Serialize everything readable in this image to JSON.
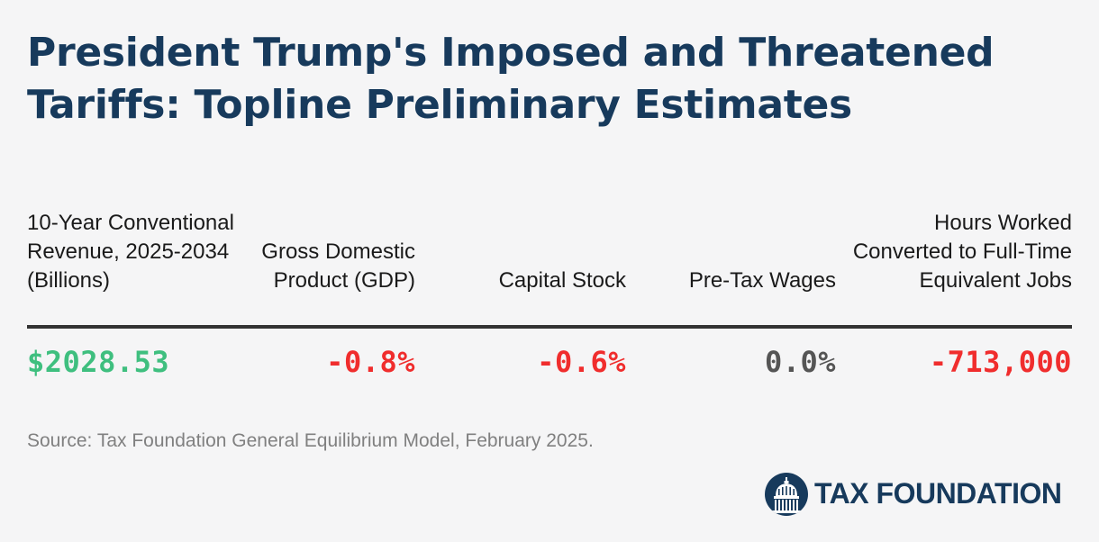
{
  "title": "President Trump's Imposed and Threatened Tariffs: Topline Preliminary Estimates",
  "colors": {
    "title": "#173a5c",
    "positive": "#3fbf7f",
    "negative": "#f02d2d",
    "neutral": "#555555",
    "source": "#808080"
  },
  "chart_data": {
    "type": "table",
    "columns": [
      {
        "header": "10-Year Conventional Revenue, 2025-2034 (Billions)",
        "value": "$2028.53",
        "sign": "positive"
      },
      {
        "header": "Gross Domestic Product (GDP)",
        "value": "-0.8%",
        "sign": "negative"
      },
      {
        "header": "Capital Stock",
        "value": "-0.6%",
        "sign": "negative"
      },
      {
        "header": "Pre-Tax Wages",
        "value": "0.0%",
        "sign": "neutral"
      },
      {
        "header": "Hours Worked Converted to Full-Time Equivalent Jobs",
        "value": "-713,000",
        "sign": "negative"
      }
    ]
  },
  "source": "Source: Tax Foundation General Equilibrium Model, February 2025.",
  "logo": {
    "text": "TAX FOUNDATION",
    "icon": "capitol-dome-icon"
  }
}
